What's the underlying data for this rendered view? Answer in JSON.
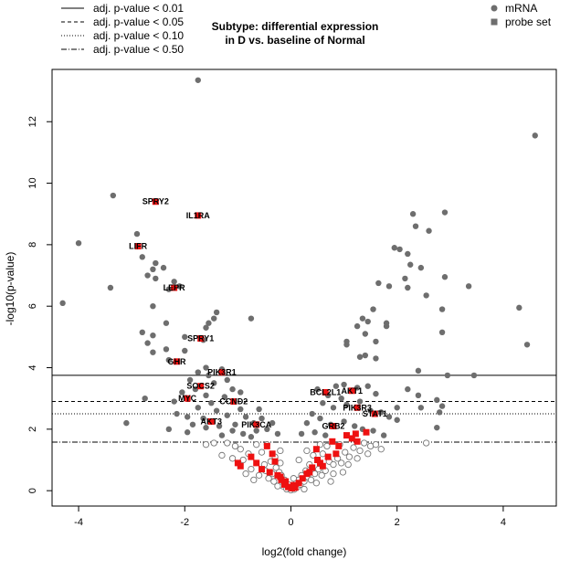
{
  "chart_data": {
    "type": "scatter",
    "title_lines": [
      "Subtype: differential expression",
      "in D vs. baseline of Normal"
    ],
    "xlabel": "log2(fold change)",
    "ylabel": "-log10(p-value)",
    "xlim": [
      -4.5,
      5.0
    ],
    "ylim": [
      -0.5,
      13.7
    ],
    "xticks": [
      -4,
      -2,
      0,
      2,
      4
    ],
    "yticks": [
      0,
      2,
      4,
      6,
      8,
      10,
      12
    ],
    "grid": false,
    "colors": {
      "mrna": "#6e6e6e",
      "probe": "#ee1111",
      "open_stroke": "#777777"
    },
    "threshold_legend": [
      {
        "label": "adj. p-value < 0.01",
        "y": 3.75,
        "dash": "solid"
      },
      {
        "label": "adj. p-value < 0.05",
        "y": 2.9,
        "dash": "dashed"
      },
      {
        "label": "adj. p-value < 0.10",
        "y": 2.5,
        "dash": "dotted"
      },
      {
        "label": "adj. p-value < 0.50",
        "y": 1.58,
        "dash": "dashdot"
      }
    ],
    "type_legend": [
      {
        "label": "mRNA",
        "shape": "circle"
      },
      {
        "label": "probe set",
        "shape": "square"
      }
    ],
    "labeled_genes": [
      {
        "name": "SPRY2",
        "x": -2.55,
        "y": 9.4
      },
      {
        "name": "IL1RA",
        "x": -1.75,
        "y": 8.95
      },
      {
        "name": "LIFR",
        "x": -2.88,
        "y": 7.95
      },
      {
        "name": "LEPR",
        "x": -2.2,
        "y": 6.6
      },
      {
        "name": "SPRY1",
        "x": -1.7,
        "y": 4.95
      },
      {
        "name": "GHR",
        "x": -2.15,
        "y": 4.2
      },
      {
        "name": "PIK3R1",
        "x": -1.3,
        "y": 3.85
      },
      {
        "name": "SOCS2",
        "x": -1.7,
        "y": 3.4
      },
      {
        "name": "MYC",
        "x": -1.95,
        "y": 3.0
      },
      {
        "name": "CCND2",
        "x": -1.08,
        "y": 2.9
      },
      {
        "name": "AKT3",
        "x": -1.5,
        "y": 2.25
      },
      {
        "name": "PIK3CA",
        "x": -0.65,
        "y": 2.15
      },
      {
        "name": "BCL2L1",
        "x": 0.65,
        "y": 3.2
      },
      {
        "name": "AKT1",
        "x": 1.15,
        "y": 3.25
      },
      {
        "name": "PIK3R3",
        "x": 1.25,
        "y": 2.7
      },
      {
        "name": "STAT1",
        "x": 1.58,
        "y": 2.5
      },
      {
        "name": "GRB2",
        "x": 0.8,
        "y": 2.1
      }
    ],
    "probe_sets": [
      [
        -0.45,
        1.45
      ],
      [
        -0.35,
        1.2
      ],
      [
        -0.3,
        0.95
      ],
      [
        -0.55,
        0.7
      ],
      [
        -0.65,
        0.9
      ],
      [
        -0.4,
        0.6
      ],
      [
        -0.25,
        0.5
      ],
      [
        -0.18,
        0.35
      ],
      [
        -0.12,
        0.2
      ],
      [
        -0.05,
        0.12
      ],
      [
        0.02,
        0.08
      ],
      [
        0.08,
        0.1
      ],
      [
        0.15,
        0.25
      ],
      [
        0.22,
        0.4
      ],
      [
        0.3,
        0.55
      ],
      [
        0.4,
        0.75
      ],
      [
        0.5,
        1.0
      ],
      [
        0.48,
        1.35
      ],
      [
        0.6,
        0.8
      ],
      [
        0.7,
        1.1
      ],
      [
        0.85,
        1.2
      ],
      [
        0.9,
        1.45
      ],
      [
        0.78,
        1.6
      ],
      [
        1.05,
        1.8
      ],
      [
        1.15,
        1.7
      ],
      [
        1.22,
        1.85
      ],
      [
        1.42,
        1.9
      ],
      [
        1.25,
        1.6
      ],
      [
        -0.95,
        0.8
      ],
      [
        -1.0,
        0.9
      ],
      [
        -0.75,
        1.1
      ],
      [
        -0.2,
        0.45
      ],
      [
        -0.1,
        0.3
      ],
      [
        0.05,
        0.18
      ],
      [
        0.35,
        0.6
      ],
      [
        0.55,
        0.9
      ]
    ],
    "mrna_significant": [
      [
        -1.75,
        13.35
      ],
      [
        4.6,
        11.55
      ],
      [
        -3.35,
        9.6
      ],
      [
        -4.0,
        8.05
      ],
      [
        -2.9,
        8.35
      ],
      [
        -2.8,
        7.6
      ],
      [
        -2.7,
        7.0
      ],
      [
        -2.6,
        7.2
      ],
      [
        -2.55,
        7.4
      ],
      [
        -2.4,
        7.25
      ],
      [
        -2.55,
        6.9
      ],
      [
        -2.3,
        6.55
      ],
      [
        -2.1,
        6.65
      ],
      [
        -2.2,
        6.8
      ],
      [
        -3.4,
        6.6
      ],
      [
        -4.3,
        6.1
      ],
      [
        -2.6,
        6.0
      ],
      [
        -1.4,
        5.8
      ],
      [
        -1.45,
        5.6
      ],
      [
        -1.55,
        5.45
      ],
      [
        -1.6,
        5.3
      ],
      [
        -2.35,
        5.45
      ],
      [
        -2.6,
        5.05
      ],
      [
        -2.8,
        5.15
      ],
      [
        -2.0,
        5.0
      ],
      [
        -0.75,
        5.6
      ],
      [
        -2.35,
        4.6
      ],
      [
        -2.6,
        4.5
      ],
      [
        -2.7,
        4.8
      ],
      [
        -1.65,
        4.9
      ],
      [
        -2.0,
        4.55
      ],
      [
        -2.3,
        4.25
      ],
      [
        2.3,
        9.0
      ],
      [
        2.35,
        8.6
      ],
      [
        2.6,
        8.45
      ],
      [
        2.9,
        9.05
      ],
      [
        1.95,
        7.9
      ],
      [
        2.05,
        7.85
      ],
      [
        2.2,
        7.7
      ],
      [
        2.25,
        7.35
      ],
      [
        2.45,
        7.25
      ],
      [
        2.15,
        6.9
      ],
      [
        2.2,
        6.6
      ],
      [
        1.65,
        6.75
      ],
      [
        1.85,
        6.65
      ],
      [
        2.55,
        6.35
      ],
      [
        2.9,
        6.95
      ],
      [
        3.35,
        6.65
      ],
      [
        4.3,
        5.95
      ],
      [
        4.45,
        4.75
      ],
      [
        2.85,
        5.9
      ],
      [
        2.85,
        5.15
      ],
      [
        1.55,
        5.9
      ],
      [
        1.45,
        5.5
      ],
      [
        1.35,
        5.6
      ],
      [
        1.25,
        5.35
      ],
      [
        1.4,
        5.1
      ],
      [
        1.6,
        4.85
      ],
      [
        1.8,
        5.35
      ],
      [
        1.8,
        5.45
      ],
      [
        1.05,
        4.75
      ],
      [
        1.05,
        4.85
      ],
      [
        1.3,
        4.35
      ],
      [
        1.4,
        4.4
      ],
      [
        1.6,
        4.3
      ],
      [
        2.4,
        3.9
      ],
      [
        2.95,
        3.75
      ],
      [
        3.45,
        3.75
      ],
      [
        -1.6,
        4.0
      ],
      [
        -1.75,
        3.85
      ],
      [
        -1.55,
        3.75
      ],
      [
        -1.3,
        3.95
      ]
    ],
    "mrna_mid": [
      [
        -1.9,
        3.6
      ],
      [
        -1.8,
        3.3
      ],
      [
        -2.05,
        3.2
      ],
      [
        -1.6,
        3.1
      ],
      [
        -1.45,
        3.5
      ],
      [
        -1.2,
        3.6
      ],
      [
        -1.1,
        3.3
      ],
      [
        -1.25,
        3.05
      ],
      [
        -0.95,
        3.2
      ],
      [
        -1.5,
        2.85
      ],
      [
        -1.75,
        2.7
      ],
      [
        -2.15,
        2.5
      ],
      [
        -1.95,
        2.4
      ],
      [
        -1.65,
        2.35
      ],
      [
        -1.4,
        2.6
      ],
      [
        -1.2,
        2.45
      ],
      [
        -0.95,
        2.65
      ],
      [
        -0.85,
        2.4
      ],
      [
        -0.7,
        2.2
      ],
      [
        -0.55,
        2.35
      ],
      [
        -0.45,
        2.0
      ],
      [
        -1.85,
        2.15
      ],
      [
        -1.6,
        2.05
      ],
      [
        -1.35,
        2.1
      ],
      [
        -1.1,
        1.95
      ],
      [
        -0.9,
        1.85
      ],
      [
        -0.75,
        1.75
      ],
      [
        -1.3,
        1.8
      ],
      [
        -1.95,
        1.9
      ],
      [
        -2.3,
        2.0
      ],
      [
        -2.75,
        3.0
      ],
      [
        -2.2,
        2.9
      ],
      [
        -3.1,
        2.2
      ],
      [
        -0.35,
        2.2
      ],
      [
        -0.25,
        1.85
      ],
      [
        0.5,
        3.3
      ],
      [
        0.7,
        3.1
      ],
      [
        0.85,
        3.4
      ],
      [
        1.0,
        3.45
      ],
      [
        1.25,
        3.35
      ],
      [
        0.95,
        3.0
      ],
      [
        0.6,
        2.85
      ],
      [
        0.8,
        2.7
      ],
      [
        1.05,
        2.8
      ],
      [
        1.3,
        2.9
      ],
      [
        1.5,
        2.6
      ],
      [
        1.7,
        2.55
      ],
      [
        1.85,
        2.4
      ],
      [
        2.0,
        2.3
      ],
      [
        0.4,
        2.5
      ],
      [
        0.3,
        2.2
      ],
      [
        0.55,
        2.35
      ],
      [
        0.75,
        2.15
      ],
      [
        1.0,
        2.25
      ],
      [
        1.2,
        2.1
      ],
      [
        1.35,
        2.0
      ],
      [
        1.55,
        1.95
      ],
      [
        1.75,
        1.8
      ],
      [
        0.45,
        1.9
      ],
      [
        0.2,
        1.85
      ],
      [
        0.65,
        1.8
      ],
      [
        2.2,
        3.3
      ],
      [
        2.4,
        3.1
      ],
      [
        2.75,
        2.95
      ],
      [
        2.85,
        2.75
      ],
      [
        2.8,
        2.55
      ],
      [
        2.75,
        2.05
      ],
      [
        2.45,
        2.7
      ],
      [
        2.0,
        2.7
      ],
      [
        1.6,
        3.15
      ],
      [
        1.45,
        3.4
      ],
      [
        -0.6,
        2.65
      ],
      [
        -1.05,
        2.15
      ],
      [
        -0.65,
        1.95
      ]
    ],
    "mrna_low": [
      [
        -0.95,
        1.35
      ],
      [
        -0.8,
        1.2
      ],
      [
        -0.65,
        1.5
      ],
      [
        -0.55,
        1.25
      ],
      [
        -0.9,
        1.0
      ],
      [
        -0.75,
        0.7
      ],
      [
        -1.05,
        1.45
      ],
      [
        -1.2,
        1.55
      ],
      [
        -0.6,
        0.5
      ],
      [
        -0.5,
        0.85
      ],
      [
        -0.42,
        0.4
      ],
      [
        -0.32,
        0.3
      ],
      [
        -0.28,
        0.75
      ],
      [
        -0.22,
        0.6
      ],
      [
        -0.15,
        0.15
      ],
      [
        -0.08,
        0.05
      ],
      [
        0.0,
        0.02
      ],
      [
        0.06,
        0.04
      ],
      [
        0.12,
        0.12
      ],
      [
        0.18,
        0.2
      ],
      [
        0.25,
        0.3
      ],
      [
        0.32,
        0.45
      ],
      [
        0.38,
        0.35
      ],
      [
        0.45,
        0.55
      ],
      [
        0.52,
        0.7
      ],
      [
        0.58,
        0.5
      ],
      [
        0.65,
        0.65
      ],
      [
        0.72,
        0.95
      ],
      [
        0.8,
        0.85
      ],
      [
        0.88,
        1.05
      ],
      [
        0.95,
        0.9
      ],
      [
        1.02,
        1.25
      ],
      [
        1.1,
        1.1
      ],
      [
        1.18,
        1.4
      ],
      [
        1.3,
        1.3
      ],
      [
        1.38,
        1.55
      ],
      [
        1.5,
        1.45
      ],
      [
        0.35,
        0.85
      ],
      [
        0.28,
        0.65
      ],
      [
        0.2,
        0.5
      ],
      [
        0.15,
        0.35
      ],
      [
        0.1,
        0.25
      ],
      [
        -0.05,
        0.2
      ],
      [
        -0.12,
        0.35
      ],
      [
        -0.18,
        0.5
      ],
      [
        -0.35,
        0.55
      ],
      [
        -0.48,
        0.65
      ],
      [
        -0.38,
        0.95
      ],
      [
        -0.3,
        1.1
      ],
      [
        -0.2,
        0.9
      ],
      [
        0.42,
        1.15
      ],
      [
        0.6,
        1.2
      ],
      [
        0.68,
        1.45
      ],
      [
        0.55,
        1.5
      ],
      [
        0.92,
        1.5
      ],
      [
        1.25,
        1.05
      ],
      [
        1.45,
        1.2
      ],
      [
        1.6,
        1.5
      ],
      [
        -1.45,
        1.55
      ],
      [
        -1.3,
        1.15
      ],
      [
        -1.1,
        1.05
      ],
      [
        -0.85,
        0.55
      ],
      [
        0.8,
        0.55
      ],
      [
        0.98,
        0.6
      ],
      [
        1.08,
        0.85
      ],
      [
        2.55,
        1.55
      ],
      [
        -0.7,
        0.35
      ],
      [
        -0.25,
        0.15
      ],
      [
        0.05,
        0.4
      ],
      [
        0.25,
        0.05
      ],
      [
        0.48,
        0.25
      ],
      [
        0.75,
        0.3
      ],
      [
        1.7,
        1.35
      ],
      [
        -1.6,
        1.5
      ],
      [
        -0.45,
        1.5
      ],
      [
        -0.2,
        1.3
      ],
      [
        0.15,
        1.0
      ],
      [
        0.3,
        1.3
      ]
    ]
  }
}
